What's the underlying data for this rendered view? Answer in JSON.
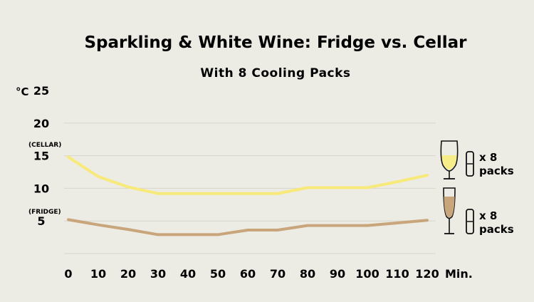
{
  "chart_data": {
    "type": "line",
    "title": "Sparkling & White Wine: Fridge vs. Cellar",
    "subtitle": "With 8 Cooling Packs",
    "ylabel": "°C",
    "xlabel": "Min.",
    "x": [
      0,
      10,
      20,
      30,
      40,
      50,
      60,
      70,
      80,
      90,
      100,
      110,
      120
    ],
    "xlim": [
      0,
      120
    ],
    "ylim": [
      0,
      25
    ],
    "yticks": [
      5,
      10,
      15,
      20,
      25
    ],
    "grid": true,
    "annotations": [
      {
        "text": "(CELLAR)",
        "near_y": 15
      },
      {
        "text": "(FRIDGE)",
        "near_y": 5
      }
    ],
    "series": [
      {
        "key": "cellar",
        "color": "#f7e97a",
        "values": [
          14.8,
          11.8,
          10.2,
          9.2,
          9.2,
          9.2,
          9.2,
          9.2,
          10.1,
          10.1,
          10.1,
          11.0,
          12.0
        ],
        "label_lines": [
          "x 8",
          "packs"
        ],
        "icon": "white-wine-glass-icon"
      },
      {
        "key": "fridge",
        "color": "#c8a57a",
        "values": [
          5.2,
          4.4,
          3.7,
          2.9,
          2.9,
          2.9,
          3.6,
          3.6,
          4.3,
          4.3,
          4.3,
          4.7,
          5.1
        ],
        "label_lines": [
          "x 8",
          "packs"
        ],
        "icon": "sparkling-wine-flute-icon"
      }
    ]
  }
}
